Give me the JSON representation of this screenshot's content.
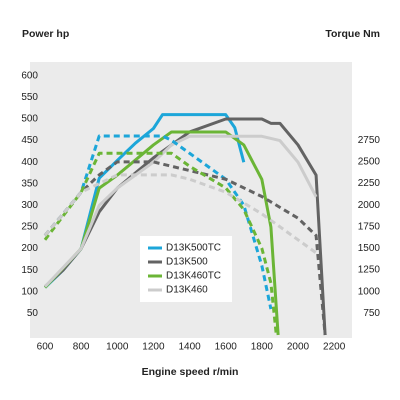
{
  "chart_data": {
    "type": "line",
    "ylabel": "Power hp",
    "y2label": "Torque Nm",
    "xlabel": "Engine speed r/min",
    "xlim": [
      600,
      2260
    ],
    "xticks": [
      600,
      800,
      1000,
      1200,
      1400,
      1600,
      1800,
      2000,
      2200
    ],
    "ylim": [
      0,
      625
    ],
    "yticks": [
      50,
      100,
      150,
      200,
      250,
      300,
      350,
      400,
      450,
      500,
      550,
      600
    ],
    "y2lim": [
      500,
      3620
    ],
    "y2ticks": [
      750,
      1000,
      1250,
      1500,
      1750,
      2000,
      2250,
      2500,
      2750
    ],
    "series": [
      {
        "name": "D13K500TC",
        "color": "#1ca6d9",
        "x": [
          600,
          700,
          800,
          900,
          1000,
          1100,
          1200,
          1250,
          1600,
          1650,
          1700
        ],
        "values": [
          110,
          150,
          200,
          363,
          404,
          444,
          478,
          510,
          510,
          480,
          400
        ]
      },
      {
        "name": "D13K500",
        "color": "#636363",
        "x": [
          600,
          700,
          800,
          900,
          1000,
          1200,
          1400,
          1600,
          1800,
          1850,
          1900,
          2000,
          2100,
          2150
        ],
        "values": [
          112,
          150,
          200,
          285,
          340,
          410,
          470,
          500,
          500,
          490,
          490,
          440,
          370,
          0
        ]
      },
      {
        "name": "D13K460TC",
        "color": "#6bb536",
        "x": [
          600,
          800,
          900,
          1000,
          1200,
          1300,
          1600,
          1700,
          1800,
          1850,
          1890
        ],
        "values": [
          110,
          200,
          340,
          370,
          440,
          470,
          470,
          440,
          360,
          250,
          0
        ]
      },
      {
        "name": "D13K460",
        "color": "#cccccc",
        "x": [
          600,
          800,
          900,
          1000,
          1200,
          1300,
          1400,
          1800,
          1900,
          2000,
          2100
        ],
        "values": [
          112,
          200,
          300,
          340,
          400,
          440,
          460,
          460,
          450,
          400,
          320
        ]
      },
      {
        "axis": "y2",
        "dashed": true,
        "color": "#1ca6d9",
        "x": [
          600,
          700,
          800,
          900,
          1250,
          1300,
          1400,
          1500,
          1600,
          1700,
          1800,
          1850
        ],
        "values": [
          1650,
          1900,
          2150,
          2800,
          2800,
          2750,
          2600,
          2450,
          2300,
          2000,
          1300,
          800
        ]
      },
      {
        "axis": "y2",
        "dashed": true,
        "color": "#636363",
        "x": [
          600,
          800,
          900,
          1000,
          1200,
          1400,
          1600,
          1800,
          2000,
          2100,
          2150
        ],
        "values": [
          1650,
          2150,
          2350,
          2500,
          2500,
          2400,
          2300,
          2100,
          1850,
          1650,
          500
        ]
      },
      {
        "axis": "y2",
        "dashed": true,
        "color": "#6bb536",
        "x": [
          600,
          800,
          900,
          1300,
          1400,
          1600,
          1700,
          1800,
          1850,
          1880
        ],
        "values": [
          1600,
          2150,
          2600,
          2600,
          2450,
          2200,
          1950,
          1500,
          1100,
          500
        ]
      },
      {
        "axis": "y2",
        "dashed": true,
        "color": "#cccccc",
        "x": [
          600,
          800,
          900,
          1000,
          1300,
          1400,
          1600,
          1800,
          2000,
          2100
        ],
        "values": [
          1650,
          2150,
          2250,
          2350,
          2350,
          2300,
          2150,
          1900,
          1600,
          1450
        ]
      }
    ]
  }
}
